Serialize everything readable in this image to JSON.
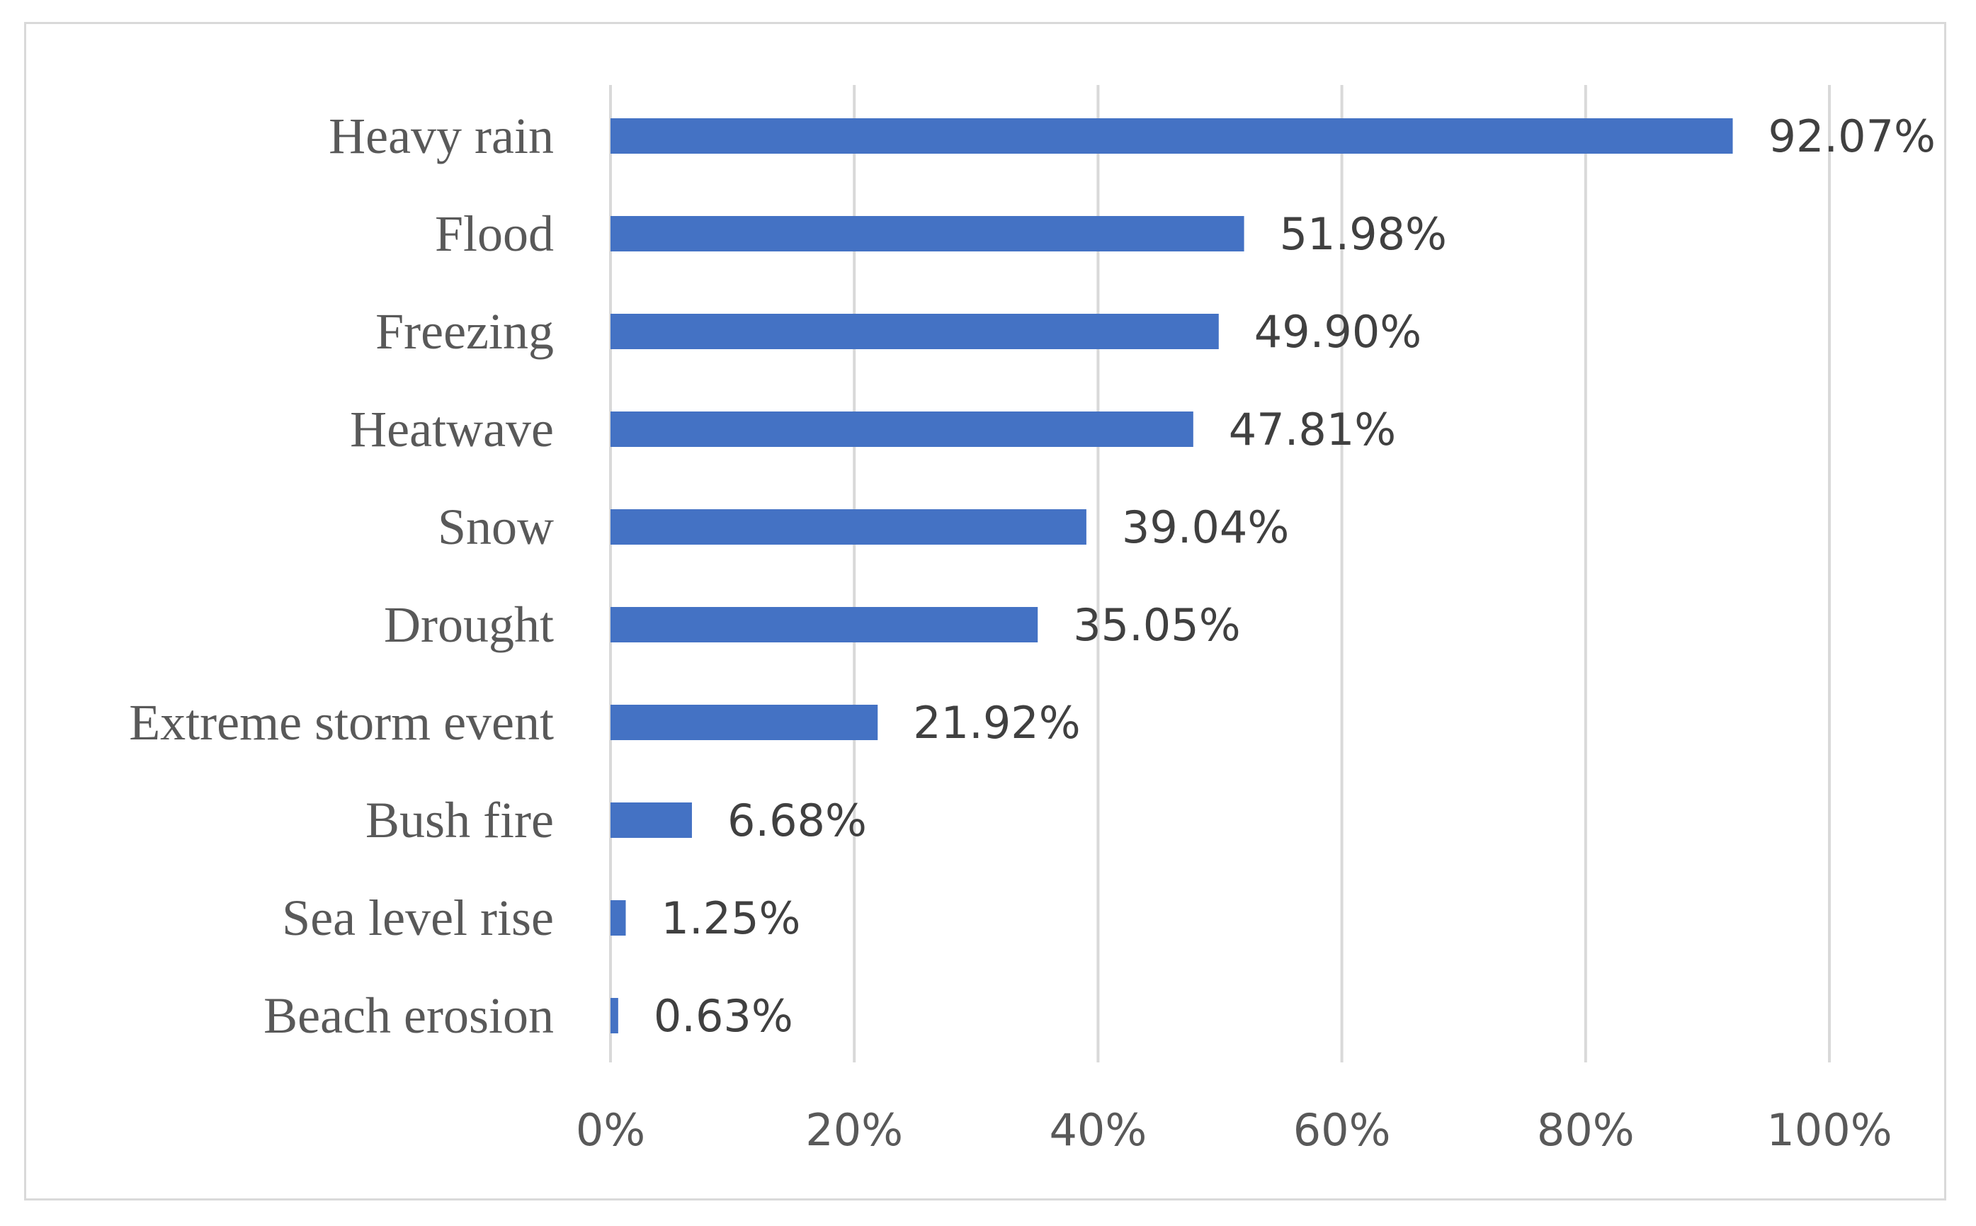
{
  "chart_data": {
    "type": "bar",
    "orientation": "horizontal",
    "title": "",
    "xlabel": "",
    "ylabel": "",
    "categories": [
      "Heavy rain",
      "Flood",
      "Freezing",
      "Heatwave",
      "Snow",
      "Drought",
      "Extreme storm event",
      "Bush fire",
      "Sea level rise",
      "Beach erosion"
    ],
    "values": [
      92.07,
      51.98,
      49.9,
      47.81,
      39.04,
      35.05,
      21.92,
      6.68,
      1.25,
      0.63
    ],
    "value_labels": [
      "92.07%",
      "51.98%",
      "49.90%",
      "47.81%",
      "39.04%",
      "35.05%",
      "21.92%",
      "6.68%",
      "1.25%",
      "0.63%"
    ],
    "xlim": [
      0,
      100
    ],
    "ticks": [
      0,
      20,
      40,
      60,
      80,
      100
    ],
    "tick_labels": [
      "0%",
      "20%",
      "40%",
      "60%",
      "80%",
      "100%"
    ],
    "grid": true,
    "legend": "none",
    "bar_color": "#4472c4"
  }
}
